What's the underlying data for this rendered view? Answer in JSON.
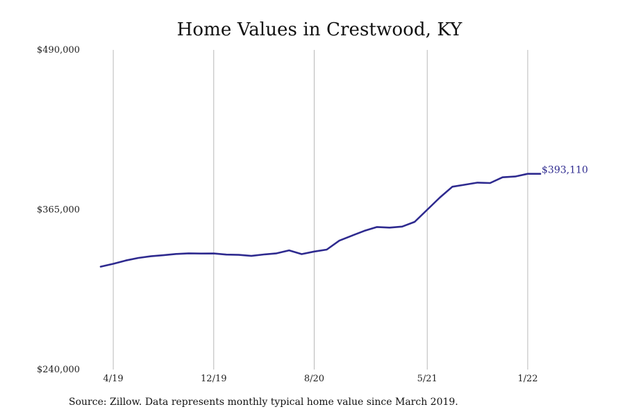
{
  "chart": {
    "title": "Home Values in Crestwood, KY",
    "source": "Source: Zillow. Data represents monthly typical home value since March 2019.",
    "end_label": "$393,110"
  },
  "colors": {
    "line": "#2e2a8f",
    "grid": "#b8b8b8",
    "text": "#222222",
    "background": "#ffffff"
  },
  "chart_data": {
    "type": "line",
    "title": "Home Values in Crestwood, KY",
    "xlabel": "",
    "ylabel": "",
    "grid": "vertical",
    "x_tick_labels": [
      "4/19",
      "12/19",
      "8/20",
      "5/21",
      "1/22"
    ],
    "y_tick_labels": [
      "$490,000",
      "$365,000",
      "$240,000"
    ],
    "ylim": [
      240000,
      490000
    ],
    "series": [
      {
        "x": [
          "2019-03",
          "2019-04",
          "2019-05",
          "2019-06",
          "2019-07",
          "2019-08",
          "2019-09",
          "2019-10",
          "2019-11",
          "2019-12",
          "2020-01",
          "2020-02",
          "2020-03",
          "2020-04",
          "2020-05",
          "2020-06",
          "2020-07",
          "2020-08",
          "2020-09",
          "2020-10",
          "2020-11",
          "2020-12",
          "2021-01",
          "2021-02",
          "2021-03",
          "2021-04",
          "2021-05",
          "2021-06",
          "2021-07",
          "2021-08",
          "2021-09",
          "2021-10",
          "2021-11",
          "2021-12",
          "2022-01",
          "2022-02"
        ],
        "values": [
          320500,
          322700,
          325300,
          327300,
          328600,
          329400,
          330400,
          330900,
          330700,
          330800,
          329900,
          329700,
          328900,
          330000,
          330900,
          333200,
          330300,
          332300,
          333800,
          340800,
          344700,
          348500,
          351500,
          351000,
          351800,
          355500,
          365000,
          374500,
          383000,
          384600,
          386200,
          385900,
          390400,
          391000,
          393110,
          393110
        ],
        "end_value": 393110
      }
    ]
  }
}
